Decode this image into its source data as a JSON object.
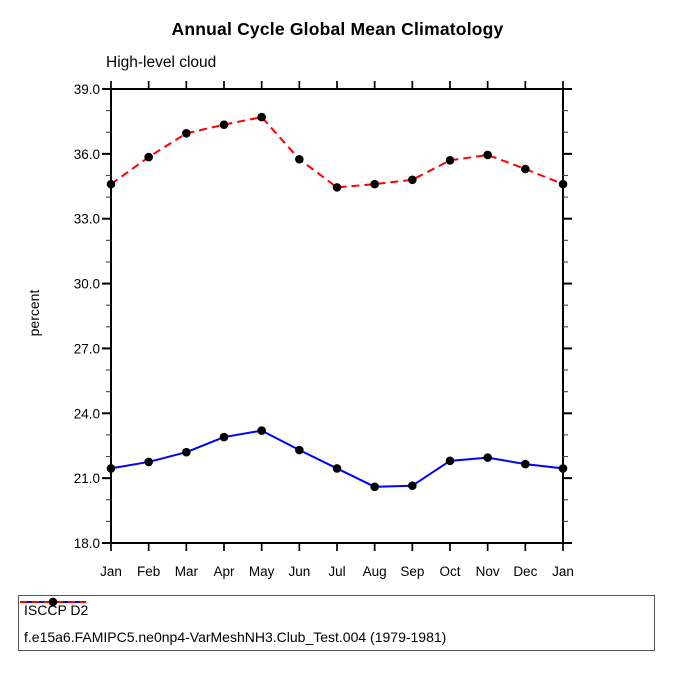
{
  "chart_data": {
    "type": "line",
    "title": "Annual Cycle Global Mean Climatology",
    "subtitle": "High-level cloud",
    "ylabel": "percent",
    "ylim": [
      18.0,
      39.0
    ],
    "ytick_major": [
      18,
      21,
      24,
      27,
      30,
      33,
      36,
      39
    ],
    "ytick_labels": [
      "18.0",
      "21.0",
      "24.0",
      "27.0",
      "30.0",
      "33.0",
      "36.0",
      "39.0"
    ],
    "ytick_minor_step": 1,
    "x_categories": [
      "Jan",
      "Feb",
      "Mar",
      "Apr",
      "May",
      "Jun",
      "Jul",
      "Aug",
      "Sep",
      "Oct",
      "Nov",
      "Dec",
      "Jan"
    ],
    "grid": false,
    "legend_position": "bottom-left-box",
    "series": [
      {
        "name": "ISCCP D2",
        "color": "#0000ff",
        "line_style": "solid",
        "marker": "black-dot",
        "values": [
          21.45,
          21.75,
          22.2,
          22.9,
          23.2,
          22.3,
          21.45,
          20.6,
          20.65,
          21.8,
          21.95,
          21.65,
          21.45
        ]
      },
      {
        "name": "f.e15a6.FAMIPC5.ne0np4-VarMeshNH3.Club_Test.004 (1979-1981)",
        "color": "#ff0000",
        "line_style": "dashed",
        "marker": "black-dot",
        "values": [
          34.6,
          35.85,
          36.95,
          37.35,
          37.7,
          35.75,
          34.45,
          34.6,
          34.8,
          35.7,
          35.95,
          35.3,
          34.6
        ]
      }
    ],
    "colors": {
      "axis": "#000000",
      "marker": "#000000",
      "minor_tick": "#444444",
      "background": "#ffffff"
    }
  }
}
